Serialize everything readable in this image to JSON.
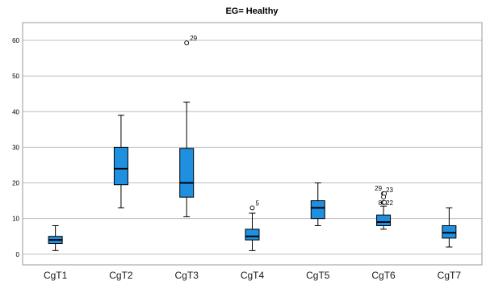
{
  "chart_data": {
    "type": "boxplot",
    "title": "EG= Healthy",
    "xlabel": "",
    "ylabel": "",
    "ylim": [
      -3,
      65
    ],
    "yticks": [
      0,
      10,
      20,
      30,
      40,
      50,
      60
    ],
    "grid": true,
    "box_color": "#1f8fe0",
    "categories": [
      "CgT1",
      "CgT2",
      "CgT3",
      "CgT4",
      "CgT5",
      "CgT6",
      "CgT7"
    ],
    "boxes": [
      {
        "category": "CgT1",
        "whisker_low": 1,
        "q1": 3,
        "median": 4,
        "q3": 5,
        "whisker_high": 8,
        "outliers": []
      },
      {
        "category": "CgT2",
        "whisker_low": 13,
        "q1": 19.5,
        "median": 24,
        "q3": 30,
        "whisker_high": 39,
        "outliers": []
      },
      {
        "category": "CgT3",
        "whisker_low": 10.5,
        "q1": 16,
        "median": 20,
        "q3": 29.7,
        "whisker_high": 42.7,
        "outliers": [
          {
            "value": 59.3,
            "label": "29"
          }
        ]
      },
      {
        "category": "CgT4",
        "whisker_low": 1,
        "q1": 4,
        "median": 5,
        "q3": 7,
        "whisker_high": 11.5,
        "outliers": [
          {
            "value": 13,
            "label": "5"
          }
        ]
      },
      {
        "category": "CgT5",
        "whisker_low": 8,
        "q1": 10,
        "median": 13,
        "q3": 15,
        "whisker_high": 20,
        "outliers": []
      },
      {
        "category": "CgT6",
        "whisker_low": 7,
        "q1": 8,
        "median": 9,
        "q3": 11,
        "whisker_high": 13.5,
        "outliers": [
          {
            "value": 17,
            "label": "29"
          },
          {
            "value": 17,
            "label": "23"
          },
          {
            "value": 16.5,
            "label": ""
          },
          {
            "value": 14.5,
            "label": "8"
          },
          {
            "value": 14.5,
            "label": "22"
          }
        ]
      },
      {
        "category": "CgT7",
        "whisker_low": 2,
        "q1": 4.5,
        "median": 6,
        "q3": 8,
        "whisker_high": 13,
        "outliers": []
      }
    ]
  }
}
